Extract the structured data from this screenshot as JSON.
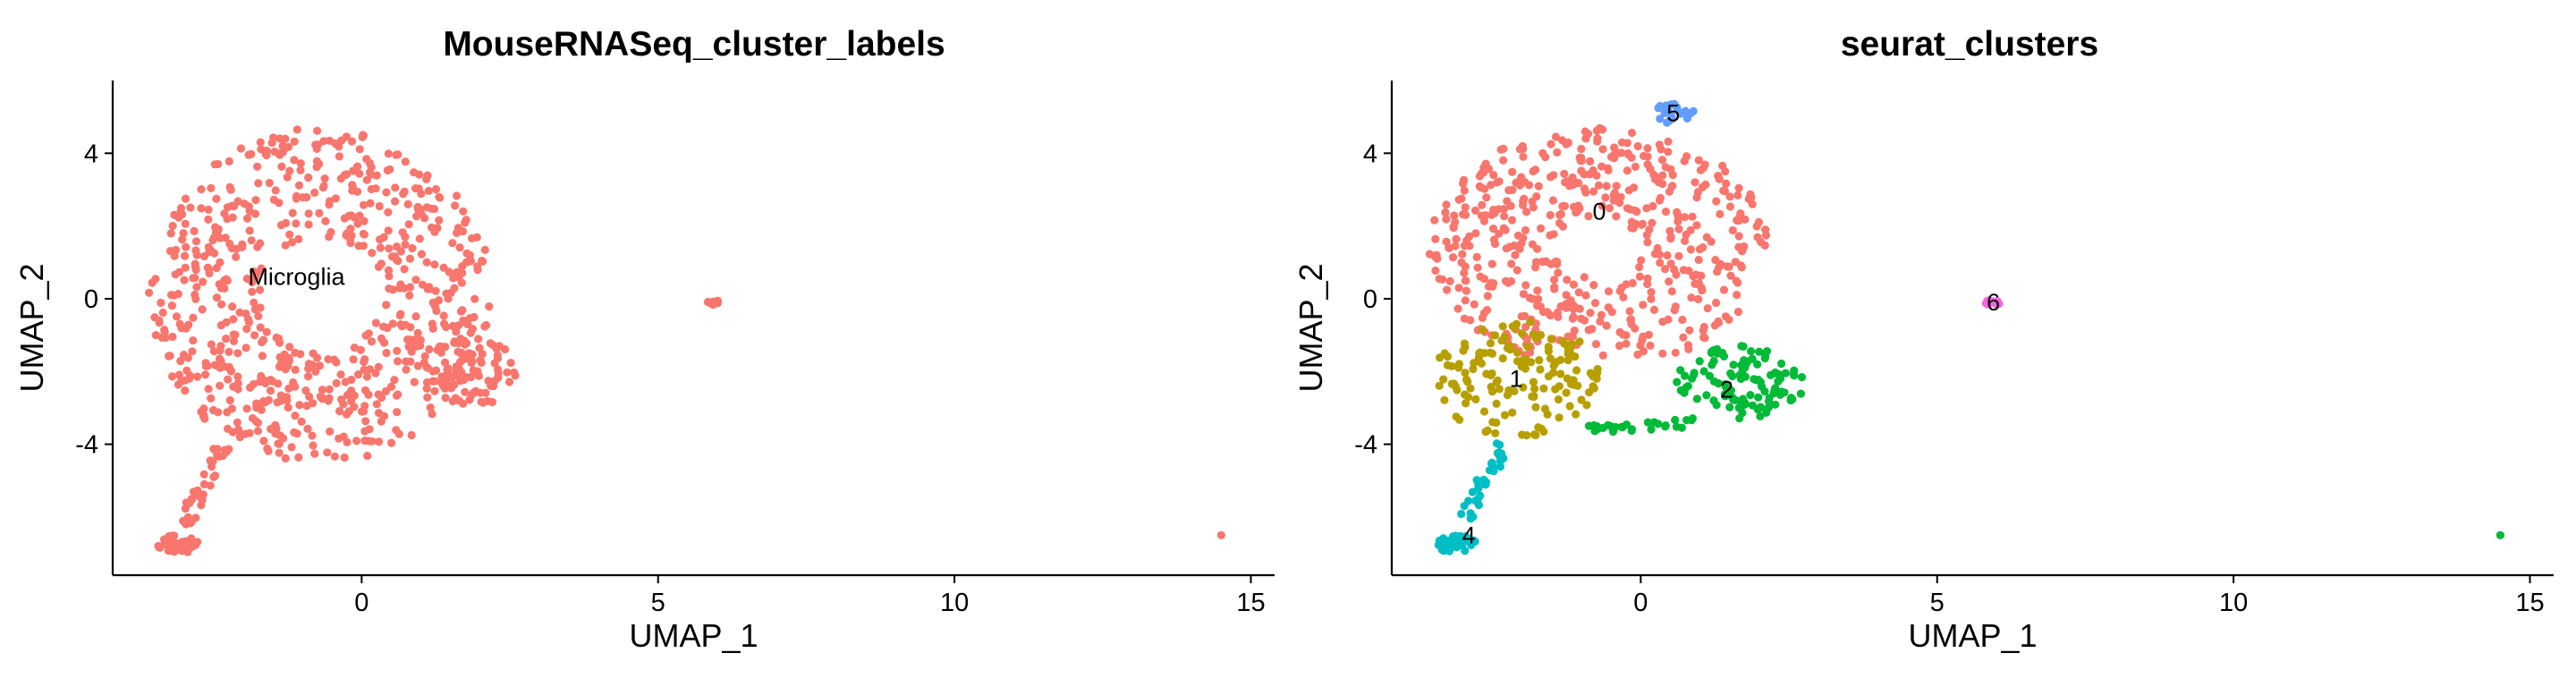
{
  "chart_data": [
    {
      "type": "scatter",
      "title": "MouseRNASeq_cluster_labels",
      "xlabel": "UMAP_1",
      "ylabel": "UMAP_2",
      "xlim": [
        -4.2,
        15.4
      ],
      "ylim": [
        -7.6,
        6.0
      ],
      "xticks": [
        0,
        5,
        10,
        15
      ],
      "yticks": [
        -4,
        0,
        4
      ],
      "grid": false,
      "legend": "none",
      "series": [
        {
          "color": "#F8766D",
          "clusters": [
            {
              "shape": "ring",
              "cx": -0.7,
              "cy": 0.1,
              "rx": 2.9,
              "ry": 4.6,
              "inner": 0.35,
              "n": 700
            },
            {
              "shape": "blob",
              "cx": 1.85,
              "cy": -2.0,
              "rx": 0.8,
              "ry": 1.0,
              "n": 80
            },
            {
              "shape": "line",
              "from": [
                -2.3,
                -4.0
              ],
              "to": [
                -3.0,
                -6.2
              ],
              "n": 35
            },
            {
              "shape": "blob",
              "cx": -3.1,
              "cy": -6.75,
              "rx": 0.35,
              "ry": 0.25,
              "n": 45
            },
            {
              "shape": "blob",
              "cx": 5.95,
              "cy": -0.1,
              "rx": 0.15,
              "ry": 0.07,
              "n": 10
            },
            {
              "shape": "point",
              "x": 14.5,
              "y": -6.5
            }
          ]
        }
      ],
      "point_labels": [
        {
          "text": "Microglia",
          "x": -1.1,
          "y": 0.6
        }
      ]
    },
    {
      "type": "scatter",
      "title": "seurat_clusters",
      "xlabel": "UMAP_1",
      "ylabel": "UMAP_2",
      "xlim": [
        -4.2,
        15.4
      ],
      "ylim": [
        -7.6,
        6.0
      ],
      "xticks": [
        0,
        5,
        10,
        15
      ],
      "yticks": [
        -4,
        0,
        4
      ],
      "grid": false,
      "legend": "none",
      "series": [
        {
          "color": "#F8766D",
          "clusters": [
            {
              "shape": "ring",
              "cx": -0.7,
              "cy": 1.4,
              "rx": 2.9,
              "ry": 3.3,
              "inner": 0.25,
              "n": 520,
              "ymin": -1.6
            }
          ]
        },
        {
          "color": "#B79F00",
          "clusters": [
            {
              "shape": "blob",
              "cx": -2.1,
              "cy": -2.2,
              "rx": 1.4,
              "ry": 1.6,
              "n": 150
            }
          ]
        },
        {
          "color": "#00BA38",
          "clusters": [
            {
              "shape": "blob",
              "cx": 1.7,
              "cy": -2.3,
              "rx": 1.1,
              "ry": 1.0,
              "n": 110
            },
            {
              "shape": "line",
              "from": [
                -1.0,
                -3.6
              ],
              "to": [
                0.9,
                -3.4
              ],
              "n": 30
            }
          ]
        },
        {
          "color": "#00BFC4",
          "clusters": [
            {
              "shape": "line",
              "from": [
                -2.3,
                -4.0
              ],
              "to": [
                -3.0,
                -6.2
              ],
              "n": 35
            },
            {
              "shape": "blob",
              "cx": -3.1,
              "cy": -6.75,
              "rx": 0.35,
              "ry": 0.25,
              "n": 45
            }
          ]
        },
        {
          "color": "#619CFF",
          "clusters": [
            {
              "shape": "blob",
              "cx": 0.55,
              "cy": 5.1,
              "rx": 0.35,
              "ry": 0.3,
              "n": 22
            }
          ]
        },
        {
          "color": "#F564E3",
          "clusters": [
            {
              "shape": "blob",
              "cx": 5.95,
              "cy": -0.1,
              "rx": 0.15,
              "ry": 0.07,
              "n": 10
            }
          ]
        },
        {
          "color": "#00BA38",
          "clusters": [
            {
              "shape": "point",
              "x": 14.5,
              "y": -6.5
            }
          ]
        }
      ],
      "point_labels": [
        {
          "text": "0",
          "x": -0.7,
          "y": 2.4
        },
        {
          "text": "1",
          "x": -2.1,
          "y": -2.2
        },
        {
          "text": "2",
          "x": 1.45,
          "y": -2.5
        },
        {
          "text": "4",
          "x": -2.9,
          "y": -6.5
        },
        {
          "text": "5",
          "x": 0.55,
          "y": 5.1
        },
        {
          "text": "6",
          "x": 5.95,
          "y": -0.1
        }
      ]
    }
  ]
}
